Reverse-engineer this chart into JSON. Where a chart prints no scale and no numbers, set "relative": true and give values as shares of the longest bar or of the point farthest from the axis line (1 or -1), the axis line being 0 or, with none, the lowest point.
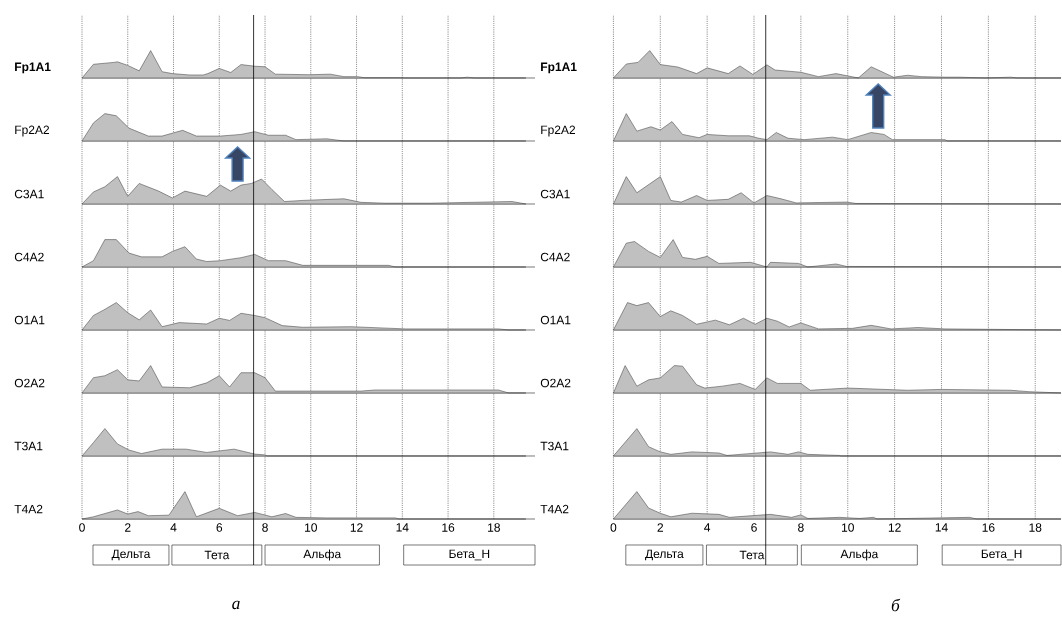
{
  "chart_data": [
    {
      "type": "area",
      "relative": true,
      "ylabel": "Fp1A1",
      "color": "#c0c0c0",
      "xlim": [
        0,
        19.8
      ],
      "xticks": [
        0,
        2,
        4,
        6,
        8,
        10,
        12,
        14,
        16,
        18
      ],
      "grid": "x",
      "tick_labels": false,
      "ref_lines": [
        {
          "axis": "x",
          "value": 7.5
        }
      ],
      "x": [
        0,
        0.5,
        1.4,
        1.55,
        2.0,
        2.5,
        3.0,
        3.5,
        3.95,
        4.7,
        5.3,
        5.5,
        6.0,
        6.5,
        6.95,
        7.55,
        8.0,
        8.45,
        9.95,
        10.85,
        11.45,
        12.05,
        12.35,
        13.25,
        13.85,
        14.15,
        16.55,
        16.85,
        17.15,
        19.4
      ],
      "values": [
        0,
        0.5,
        0.57,
        0.59,
        0.46,
        0.26,
        1,
        0.23,
        0.16,
        0.11,
        0.11,
        0.16,
        0.35,
        0.2,
        0.49,
        0.43,
        0.41,
        0.14,
        0.12,
        0.14,
        0.05,
        0.05,
        0.01,
        0.01,
        0.01,
        0,
        0,
        0.03,
        0,
        0
      ]
    },
    {
      "type": "area",
      "relative": true,
      "ylabel": "Fp2A2",
      "color": "#c0c0c0",
      "xlim": [
        0,
        19.8
      ],
      "xticks": [
        0,
        2,
        4,
        6,
        8,
        10,
        12,
        14,
        16,
        18
      ],
      "grid": "x",
      "tick_labels": false,
      "ref_lines": [
        {
          "axis": "x",
          "value": 7.5
        }
      ],
      "x": [
        0,
        0.5,
        1.0,
        1.5,
        2.05,
        2.9,
        3.5,
        4.4,
        5.0,
        6.05,
        6.95,
        7.55,
        8.15,
        8.9,
        9.35,
        10.7,
        11.45,
        13.7,
        19.4
      ],
      "values": [
        0,
        0.66,
        1,
        0.92,
        0.47,
        0.18,
        0.18,
        0.39,
        0.18,
        0.18,
        0.24,
        0.34,
        0.21,
        0.21,
        0.05,
        0.08,
        0,
        0,
        0
      ]
    },
    {
      "type": "area",
      "relative": true,
      "ylabel": "C3A1",
      "color": "#c0c0c0",
      "xlim": [
        0,
        19.8
      ],
      "xticks": [
        0,
        2,
        4,
        6,
        8,
        10,
        12,
        14,
        16,
        18
      ],
      "grid": "x",
      "tick_labels": false,
      "ref_lines": [
        {
          "axis": "x",
          "value": 7.5
        }
      ],
      "x": [
        0,
        0.5,
        1.0,
        1.55,
        2.0,
        2.5,
        3.35,
        3.95,
        4.5,
        5.45,
        6.05,
        6.5,
        6.95,
        7.4,
        7.85,
        8.3,
        8.85,
        9.65,
        11.45,
        12.2,
        13.25,
        15.2,
        18.8,
        19.4
      ],
      "values": [
        0,
        0.44,
        0.63,
        1,
        0.28,
        0.75,
        0.47,
        0.22,
        0.47,
        0.28,
        0.69,
        0.47,
        0.69,
        0.75,
        0.91,
        0.53,
        0.09,
        0.13,
        0.19,
        0.06,
        0.03,
        0.03,
        0.09,
        0
      ]
    },
    {
      "type": "area",
      "relative": true,
      "ylabel": "C4A2",
      "color": "#c0c0c0",
      "xlim": [
        0,
        19.8
      ],
      "xticks": [
        0,
        2,
        4,
        6,
        8,
        10,
        12,
        14,
        16,
        18
      ],
      "grid": "x",
      "tick_labels": false,
      "ref_lines": [
        {
          "axis": "x",
          "value": 7.5
        }
      ],
      "x": [
        0,
        0.5,
        1.0,
        1.5,
        2.05,
        2.6,
        3.5,
        3.95,
        4.5,
        5.0,
        5.45,
        6.05,
        6.95,
        7.55,
        8.15,
        8.9,
        9.65,
        10.7,
        11.45,
        12.2,
        13.4,
        13.7,
        19.4
      ],
      "values": [
        0,
        0.23,
        1,
        1,
        0.51,
        0.37,
        0.37,
        0.57,
        0.74,
        0.29,
        0.2,
        0.23,
        0.34,
        0.46,
        0.23,
        0.23,
        0.06,
        0.06,
        0.06,
        0.06,
        0.06,
        0,
        0
      ]
    },
    {
      "type": "area",
      "relative": true,
      "ylabel": "O1A1",
      "color": "#c0c0c0",
      "xlim": [
        0,
        19.8
      ],
      "xticks": [
        0,
        2,
        4,
        6,
        8,
        10,
        12,
        14,
        16,
        18
      ],
      "grid": "x",
      "tick_labels": false,
      "ref_lines": [
        {
          "axis": "x",
          "value": 7.5
        }
      ],
      "x": [
        0,
        0.5,
        0.95,
        1.5,
        2.0,
        2.5,
        3.0,
        3.5,
        4.25,
        5.45,
        6.0,
        6.45,
        6.95,
        7.55,
        8.0,
        8.75,
        9.65,
        11.75,
        14.15,
        15.35,
        18.2,
        18.65,
        19.4
      ],
      "values": [
        0,
        0.53,
        0.73,
        1,
        0.63,
        0.37,
        0.73,
        0.12,
        0.27,
        0.22,
        0.43,
        0.35,
        0.61,
        0.53,
        0.45,
        0.16,
        0.1,
        0.12,
        0.04,
        0.04,
        0.04,
        0,
        0
      ]
    },
    {
      "type": "area",
      "relative": true,
      "ylabel": "O2A2",
      "color": "#c0c0c0",
      "xlim": [
        0,
        19.8
      ],
      "xticks": [
        0,
        2,
        4,
        6,
        8,
        10,
        12,
        14,
        16,
        18
      ],
      "grid": "x",
      "tick_labels": false,
      "ref_lines": [
        {
          "axis": "x",
          "value": 7.5
        }
      ],
      "x": [
        0,
        0.5,
        1.0,
        1.55,
        2.0,
        2.5,
        3.0,
        3.5,
        4.7,
        5.45,
        6.0,
        6.45,
        6.95,
        7.55,
        8.0,
        8.45,
        12.2,
        12.8,
        13.85,
        18.2,
        18.65,
        19.4
      ],
      "values": [
        0,
        0.56,
        0.63,
        0.85,
        0.48,
        0.44,
        1,
        0.22,
        0.19,
        0.37,
        0.63,
        0.22,
        0.74,
        0.74,
        0.56,
        0.07,
        0.07,
        0.11,
        0.11,
        0.11,
        0,
        0
      ]
    },
    {
      "type": "area",
      "relative": true,
      "ylabel": "T3A1",
      "color": "#c0c0c0",
      "xlim": [
        0,
        19.8
      ],
      "xticks": [
        0,
        2,
        4,
        6,
        8,
        10,
        12,
        14,
        16,
        18
      ],
      "grid": "x",
      "tick_labels": false,
      "ref_lines": [
        {
          "axis": "x",
          "value": 7.5
        }
      ],
      "x": [
        0,
        0.5,
        1.0,
        1.55,
        2.05,
        2.6,
        3.5,
        4.55,
        5.45,
        6.65,
        7.55,
        8.0,
        8.1,
        19.4
      ],
      "values": [
        0,
        0.49,
        1,
        0.44,
        0.22,
        0.09,
        0.25,
        0.25,
        0.13,
        0.25,
        0.07,
        0.04,
        0,
        0
      ]
    },
    {
      "type": "area",
      "relative": true,
      "ylabel": "T4A2",
      "color": "#c0c0c0",
      "xlim": [
        0,
        19.8
      ],
      "xticks": [
        0,
        2,
        4,
        6,
        8,
        10,
        12,
        14,
        16,
        18
      ],
      "grid": "x",
      "ref_lines": [
        {
          "axis": "x",
          "value": 7.5
        }
      ],
      "annotations": [
        "Дельта",
        "Тета",
        "Альфа",
        "Бета_Н",
        "а"
      ],
      "x": [
        0,
        0.5,
        1.55,
        2.0,
        2.45,
        2.9,
        3.8,
        4.5,
        5.0,
        6.0,
        6.8,
        7.55,
        8.3,
        8.9,
        9.35,
        10.7,
        11.45,
        12.2,
        13.7,
        13.85,
        19.4
      ],
      "values": [
        0,
        0.08,
        0.33,
        0.18,
        0.27,
        0.12,
        0.14,
        1,
        0.08,
        0.39,
        0.12,
        0.24,
        0.08,
        0.2,
        0.06,
        0.04,
        0.04,
        0.04,
        0.04,
        0,
        0
      ]
    },
    {
      "type": "area",
      "relative": true,
      "ylabel": "Fp1A1",
      "color": "#c0c0c0",
      "xlim": [
        0,
        19.1
      ],
      "xticks": [
        0,
        2,
        4,
        6,
        8,
        10,
        12,
        14,
        16,
        18
      ],
      "grid": "x",
      "tick_labels": false,
      "ref_lines": [
        {
          "axis": "x",
          "value": 6.5
        }
      ],
      "x": [
        0,
        0.55,
        1.05,
        1.55,
        2.0,
        2.75,
        3.55,
        4.0,
        4.9,
        5.4,
        5.95,
        6.55,
        6.9,
        8.0,
        8.75,
        9.5,
        10.45,
        11.0,
        11.95,
        12.55,
        13.15,
        14.15,
        14.75,
        15.9,
        16.95,
        17.25,
        19.1
      ],
      "values": [
        0,
        0.51,
        0.57,
        1,
        0.49,
        0.4,
        0.16,
        0.37,
        0.16,
        0.44,
        0.13,
        0.48,
        0.29,
        0.21,
        0.05,
        0.16,
        0,
        0.41,
        0.03,
        0.1,
        0.05,
        0.03,
        0.03,
        0,
        0.03,
        0,
        0
      ]
    },
    {
      "type": "area",
      "relative": true,
      "ylabel": "Fp2A2",
      "color": "#c0c0c0",
      "xlim": [
        0,
        19.1
      ],
      "xticks": [
        0,
        2,
        4,
        6,
        8,
        10,
        12,
        14,
        16,
        18
      ],
      "grid": "x",
      "tick_labels": false,
      "ref_lines": [
        {
          "axis": "x",
          "value": 6.5
        }
      ],
      "x": [
        0,
        0.55,
        1.0,
        1.6,
        2.0,
        2.5,
        2.95,
        3.65,
        4.0,
        4.9,
        5.8,
        6.2,
        6.55,
        6.95,
        7.45,
        8.15,
        9.35,
        10.0,
        11.0,
        11.55,
        11.9,
        12.55,
        14.15,
        14.25,
        19.1
      ],
      "values": [
        0,
        1,
        0.36,
        0.52,
        0.4,
        0.71,
        0.24,
        0.12,
        0.24,
        0.19,
        0.19,
        0.1,
        0.05,
        0.31,
        0.1,
        0.05,
        0.14,
        0.05,
        0.31,
        0.24,
        0.05,
        0.05,
        0.05,
        0,
        0
      ]
    },
    {
      "type": "area",
      "relative": true,
      "ylabel": "C3A1",
      "color": "#c0c0c0",
      "xlim": [
        0,
        19.1
      ],
      "xticks": [
        0,
        2,
        4,
        6,
        8,
        10,
        12,
        14,
        16,
        18
      ],
      "grid": "x",
      "tick_labels": false,
      "ref_lines": [
        {
          "axis": "x",
          "value": 6.5
        }
      ],
      "x": [
        0,
        0.55,
        1.0,
        2.0,
        2.45,
        2.9,
        3.55,
        4.0,
        4.9,
        5.45,
        6.0,
        6.55,
        7.15,
        7.8,
        9.95,
        10.35,
        19.1
      ],
      "values": [
        0,
        1,
        0.41,
        1,
        0.13,
        0.07,
        0.31,
        0.13,
        0.17,
        0.41,
        0.04,
        0.31,
        0.19,
        0.04,
        0.07,
        0.02,
        0
      ]
    },
    {
      "type": "area",
      "relative": true,
      "ylabel": "C4A2",
      "color": "#c0c0c0",
      "xlim": [
        0,
        19.1
      ],
      "xticks": [
        0,
        2,
        4,
        6,
        8,
        10,
        12,
        14,
        16,
        18
      ],
      "grid": "x",
      "tick_labels": false,
      "ref_lines": [
        {
          "axis": "x",
          "value": 6.5
        }
      ],
      "x": [
        0,
        0.55,
        0.9,
        1.5,
        2.0,
        2.55,
        2.95,
        3.5,
        4.0,
        4.5,
        5.85,
        6.55,
        6.7,
        7.9,
        8.3,
        9.5,
        9.95,
        19.1
      ],
      "values": [
        0,
        0.87,
        0.93,
        0.57,
        0.35,
        1,
        0.35,
        0.28,
        0.39,
        0.13,
        0.17,
        0,
        0.17,
        0.13,
        0,
        0.11,
        0.02,
        0
      ]
    },
    {
      "type": "area",
      "relative": true,
      "ylabel": "O1A1",
      "color": "#c0c0c0",
      "xlim": [
        0,
        19.1
      ],
      "xticks": [
        0,
        2,
        4,
        6,
        8,
        10,
        12,
        14,
        16,
        18
      ],
      "grid": "x",
      "tick_labels": false,
      "ref_lines": [
        {
          "axis": "x",
          "value": 6.5
        }
      ],
      "x": [
        0,
        0.6,
        1.0,
        1.5,
        2.0,
        2.45,
        2.95,
        3.55,
        4.35,
        4.95,
        5.55,
        6.05,
        6.55,
        7.0,
        7.5,
        8.0,
        8.75,
        10.2,
        11.0,
        11.85,
        13.0,
        14.15,
        19.1
      ],
      "values": [
        0,
        1,
        0.89,
        1,
        0.49,
        0.7,
        0.53,
        0.21,
        0.36,
        0.19,
        0.43,
        0.21,
        0.43,
        0.32,
        0.11,
        0.26,
        0.04,
        0.06,
        0.17,
        0.04,
        0.09,
        0.04,
        0
      ]
    },
    {
      "type": "area",
      "relative": true,
      "ylabel": "O2A2",
      "color": "#c0c0c0",
      "xlim": [
        0,
        19.1
      ],
      "xticks": [
        0,
        2,
        4,
        6,
        8,
        10,
        12,
        14,
        16,
        18
      ],
      "grid": "x",
      "tick_labels": false,
      "ref_lines": [
        {
          "axis": "x",
          "value": 6.5
        }
      ],
      "x": [
        0,
        0.5,
        1.0,
        1.5,
        2.0,
        2.6,
        2.95,
        3.55,
        3.9,
        4.65,
        5.4,
        6.05,
        6.55,
        7.0,
        8.0,
        8.4,
        10.0,
        12.55,
        14.0,
        16.95,
        17.7,
        19.1
      ],
      "values": [
        0,
        1,
        0.25,
        0.48,
        0.55,
        1,
        0.98,
        0.3,
        0.18,
        0.25,
        0.35,
        0.13,
        0.55,
        0.35,
        0.35,
        0.1,
        0.18,
        0.1,
        0.13,
        0.1,
        0.05,
        0
      ]
    },
    {
      "type": "area",
      "relative": true,
      "ylabel": "T3A1",
      "color": "#c0c0c0",
      "xlim": [
        0,
        19.1
      ],
      "xticks": [
        0,
        2,
        4,
        6,
        8,
        10,
        12,
        14,
        16,
        18
      ],
      "grid": "x",
      "tick_labels": false,
      "ref_lines": [
        {
          "axis": "x",
          "value": 6.5
        }
      ],
      "x": [
        0,
        1.0,
        1.5,
        2.0,
        2.45,
        3.35,
        4.5,
        4.85,
        6.7,
        7.45,
        7.9,
        8.3,
        9.65,
        9.7,
        19.1
      ],
      "values": [
        0,
        1,
        0.34,
        0.15,
        0.06,
        0.15,
        0.11,
        0.02,
        0.15,
        0.06,
        0.15,
        0.06,
        0.02,
        0,
        0
      ]
    },
    {
      "type": "area",
      "relative": true,
      "ylabel": "T4A2",
      "color": "#c0c0c0",
      "xlim": [
        0,
        19.1
      ],
      "xticks": [
        0,
        2,
        4,
        6,
        8,
        10,
        12,
        14,
        16,
        18
      ],
      "grid": "x",
      "ref_lines": [
        {
          "axis": "x",
          "value": 6.5
        }
      ],
      "annotations": [
        "Дельта",
        "Тета",
        "Альфа",
        "Бета_Н",
        "б"
      ],
      "x": [
        0,
        1.0,
        1.5,
        2.0,
        2.45,
        3.35,
        4.5,
        4.95,
        6.7,
        7.6,
        8.0,
        8.3,
        9.65,
        10.5,
        11.1,
        11.25,
        15.2,
        15.5,
        19.1
      ],
      "values": [
        0,
        1,
        0.4,
        0.21,
        0.08,
        0.21,
        0.17,
        0.06,
        0.17,
        0.06,
        0.15,
        0.02,
        0.06,
        0.02,
        0.06,
        0,
        0.06,
        0,
        0
      ]
    }
  ]
}
